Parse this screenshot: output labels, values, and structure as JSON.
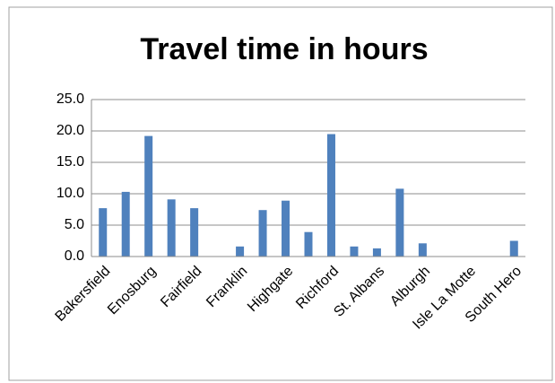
{
  "chart_data": {
    "type": "bar",
    "title": "Travel time in hours",
    "categories": [
      "Bakersfield",
      null,
      "Enosburg",
      null,
      "Fairfield",
      null,
      "Franklin",
      null,
      "Highgate",
      null,
      "Richford",
      null,
      "St. Albans",
      null,
      "Alburgh",
      null,
      "Isle La Motte",
      null,
      "South Hero"
    ],
    "values": [
      7.7,
      10.3,
      19.2,
      9.1,
      7.7,
      0,
      1.6,
      7.4,
      8.9,
      3.9,
      19.5,
      1.6,
      1.3,
      10.8,
      2.1,
      0,
      0,
      0,
      2.5
    ],
    "color": "#4f81bd",
    "ylim": [
      0,
      25
    ],
    "yticks": [
      {
        "value": 0,
        "label": "0.0"
      },
      {
        "value": 5,
        "label": "5.0"
      },
      {
        "value": 10,
        "label": "10.0"
      },
      {
        "value": 15,
        "label": "15.0"
      },
      {
        "value": 20,
        "label": "20.0"
      },
      {
        "value": 25,
        "label": "25.0"
      }
    ],
    "grid": true
  }
}
